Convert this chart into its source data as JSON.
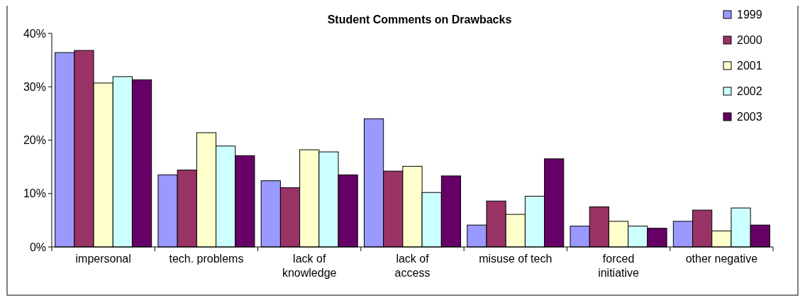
{
  "chart_data": {
    "type": "bar",
    "title": "Student Comments on Drawbacks",
    "categories": [
      "impersonal",
      "tech. problems",
      "lack of\nknowledge",
      "lack of\naccess",
      "misuse of tech",
      "forced\ninitiative",
      "other negative"
    ],
    "series": [
      {
        "name": "1999",
        "color": "#9999ff",
        "values": [
          36.4,
          13.5,
          12.4,
          24.0,
          4.1,
          3.9,
          4.8
        ]
      },
      {
        "name": "2000",
        "color": "#993366",
        "values": [
          36.8,
          14.4,
          11.1,
          14.2,
          8.6,
          7.5,
          6.9
        ]
      },
      {
        "name": "2001",
        "color": "#ffffcc",
        "values": [
          30.7,
          21.4,
          18.2,
          15.1,
          6.1,
          4.8,
          3.0
        ]
      },
      {
        "name": "2002",
        "color": "#ccffff",
        "values": [
          31.9,
          18.9,
          17.8,
          10.2,
          9.5,
          3.9,
          7.3
        ]
      },
      {
        "name": "2003",
        "color": "#660066",
        "values": [
          31.3,
          17.1,
          13.5,
          13.3,
          16.5,
          3.5,
          4.1
        ]
      }
    ],
    "ylim": [
      0,
      40
    ],
    "yticks": [
      {
        "value": 0,
        "label": "0%"
      },
      {
        "value": 10,
        "label": "10%"
      },
      {
        "value": 20,
        "label": "20%"
      },
      {
        "value": 30,
        "label": "30%"
      },
      {
        "value": 40,
        "label": "40%"
      }
    ],
    "legend": "top right"
  }
}
